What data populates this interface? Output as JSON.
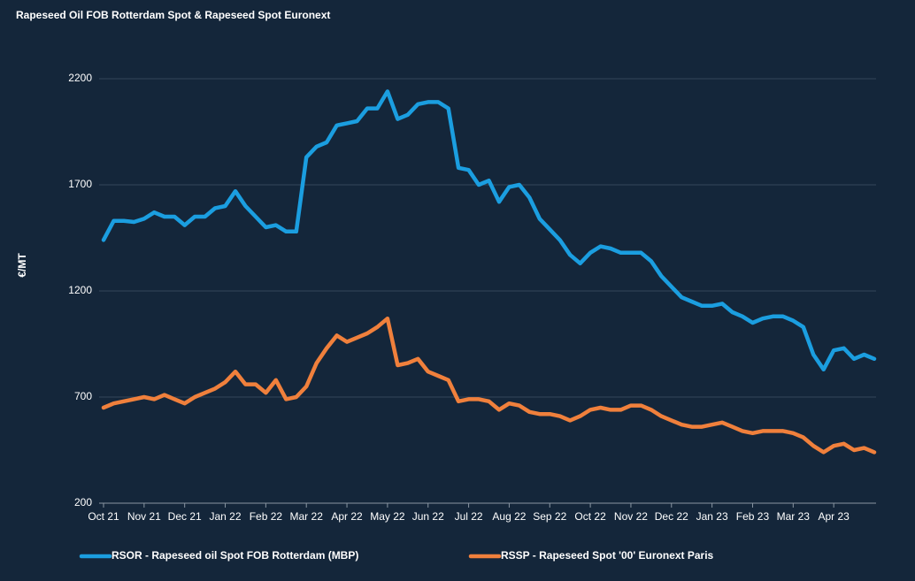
{
  "chart_data": {
    "type": "line",
    "title": "Rapeseed Oil FOB Rotterdam Spot & Rapeseed Spot Euronext",
    "y_label": "€/MT",
    "categories": [
      "Oct 21",
      null,
      null,
      null,
      "Nov 21",
      null,
      null,
      null,
      "Dec 21",
      null,
      null,
      null,
      "Jan 22",
      null,
      null,
      null,
      "Feb 22",
      null,
      null,
      null,
      "Mar 22",
      null,
      null,
      null,
      "Apr 22",
      null,
      null,
      null,
      "May 22",
      null,
      null,
      null,
      "Jun 22",
      null,
      null,
      null,
      "Jul 22",
      null,
      null,
      null,
      "Aug 22",
      null,
      null,
      null,
      "Sep 22",
      null,
      null,
      null,
      "Oct 22",
      null,
      null,
      null,
      "Nov 22",
      null,
      null,
      null,
      "Dec 22",
      null,
      null,
      null,
      "Jan 23",
      null,
      null,
      null,
      "Feb 23",
      null,
      null,
      null,
      "Mar 23",
      null,
      null,
      null,
      "Apr 23",
      null,
      null,
      null,
      null
    ],
    "series": [
      {
        "name": "RSOR - Rapeseed oil Spot FOB Rotterdam (MBP)",
        "color": "#1b9ee0",
        "values": [
          1440,
          1530,
          1530,
          1525,
          1540,
          1570,
          1550,
          1550,
          1510,
          1550,
          1550,
          1590,
          1600,
          1670,
          1600,
          1550,
          1500,
          1510,
          1480,
          1480,
          1830,
          1880,
          1900,
          1980,
          1990,
          2000,
          2060,
          2060,
          2140,
          2010,
          2030,
          2080,
          2090,
          2090,
          2060,
          1780,
          1770,
          1700,
          1720,
          1620,
          1690,
          1700,
          1640,
          1540,
          1490,
          1440,
          1370,
          1330,
          1380,
          1410,
          1400,
          1380,
          1380,
          1380,
          1340,
          1270,
          1220,
          1170,
          1150,
          1130,
          1130,
          1140,
          1100,
          1080,
          1050,
          1070,
          1080,
          1080,
          1060,
          1030,
          900,
          830,
          920,
          930,
          880,
          900,
          880
        ]
      },
      {
        "name": "RSSP - Rapeseed Spot '00' Euronext Paris",
        "color": "#f0803c",
        "values": [
          650,
          670,
          680,
          690,
          700,
          690,
          710,
          690,
          670,
          700,
          720,
          740,
          770,
          820,
          760,
          760,
          720,
          780,
          690,
          700,
          750,
          860,
          930,
          990,
          960,
          980,
          1000,
          1030,
          1070,
          850,
          860,
          880,
          820,
          800,
          780,
          680,
          690,
          690,
          680,
          640,
          670,
          660,
          630,
          620,
          620,
          610,
          590,
          610,
          640,
          650,
          640,
          640,
          660,
          660,
          640,
          610,
          590,
          570,
          560,
          560,
          570,
          580,
          560,
          540,
          530,
          540,
          540,
          540,
          530,
          510,
          470,
          440,
          470,
          480,
          450,
          460,
          440
        ]
      }
    ],
    "ylim": [
      200,
      2200
    ],
    "yticks": [
      200,
      700,
      1200,
      1700,
      2200
    ],
    "grid": true
  }
}
